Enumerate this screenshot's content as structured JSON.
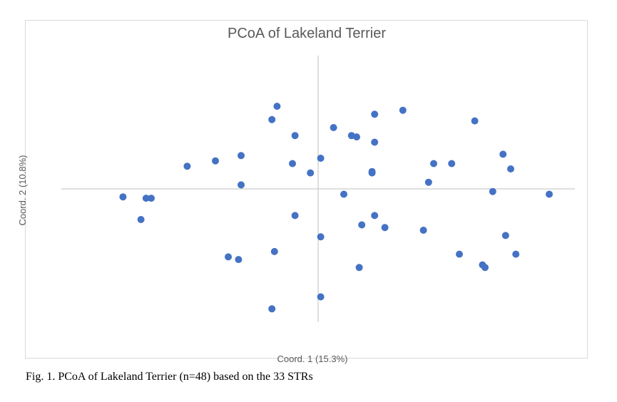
{
  "chart_data": {
    "type": "scatter",
    "title": "PCoA of Lakeland Terrier",
    "xlabel": "Coord. 1 (15.3%)",
    "ylabel": "Coord. 2 (10.8%)",
    "xlim": [
      -1.0,
      1.0
    ],
    "ylim": [
      -1.0,
      1.0
    ],
    "grid": false,
    "legend": "none",
    "marker_color": "#4472C4",
    "axis_color": "#bfbfbf",
    "points": [
      {
        "x": -0.76,
        "y": -0.06
      },
      {
        "x": -0.67,
        "y": -0.07
      },
      {
        "x": -0.65,
        "y": -0.07
      },
      {
        "x": -0.69,
        "y": -0.23
      },
      {
        "x": -0.51,
        "y": 0.17
      },
      {
        "x": -0.4,
        "y": 0.21
      },
      {
        "x": -0.3,
        "y": 0.25
      },
      {
        "x": -0.3,
        "y": 0.03
      },
      {
        "x": -0.31,
        "y": -0.53
      },
      {
        "x": -0.35,
        "y": -0.51
      },
      {
        "x": -0.18,
        "y": 0.52
      },
      {
        "x": -0.16,
        "y": 0.62
      },
      {
        "x": -0.17,
        "y": -0.47
      },
      {
        "x": -0.18,
        "y": -0.9
      },
      {
        "x": -0.09,
        "y": 0.4
      },
      {
        "x": -0.09,
        "y": -0.2
      },
      {
        "x": -0.1,
        "y": 0.19
      },
      {
        "x": -0.03,
        "y": 0.12
      },
      {
        "x": 0.01,
        "y": 0.23
      },
      {
        "x": 0.01,
        "y": -0.36
      },
      {
        "x": 0.01,
        "y": -0.81
      },
      {
        "x": 0.06,
        "y": 0.46
      },
      {
        "x": 0.1,
        "y": -0.04
      },
      {
        "x": 0.13,
        "y": 0.4
      },
      {
        "x": 0.15,
        "y": 0.39
      },
      {
        "x": 0.17,
        "y": -0.27
      },
      {
        "x": 0.16,
        "y": -0.59
      },
      {
        "x": 0.21,
        "y": 0.13
      },
      {
        "x": 0.21,
        "y": 0.12
      },
      {
        "x": 0.22,
        "y": 0.56
      },
      {
        "x": 0.22,
        "y": 0.35
      },
      {
        "x": 0.22,
        "y": -0.2
      },
      {
        "x": 0.26,
        "y": -0.29
      },
      {
        "x": 0.33,
        "y": 0.59
      },
      {
        "x": 0.41,
        "y": -0.31
      },
      {
        "x": 0.43,
        "y": 0.05
      },
      {
        "x": 0.45,
        "y": 0.19
      },
      {
        "x": 0.52,
        "y": 0.19
      },
      {
        "x": 0.55,
        "y": -0.49
      },
      {
        "x": 0.61,
        "y": 0.51
      },
      {
        "x": 0.64,
        "y": -0.57
      },
      {
        "x": 0.65,
        "y": -0.59
      },
      {
        "x": 0.68,
        "y": -0.02
      },
      {
        "x": 0.72,
        "y": 0.26
      },
      {
        "x": 0.73,
        "y": -0.35
      },
      {
        "x": 0.75,
        "y": 0.15
      },
      {
        "x": 0.77,
        "y": -0.49
      },
      {
        "x": 0.9,
        "y": -0.04
      }
    ]
  },
  "caption": "Fig. 1. PCoA of Lakeland Terrier (n=48) based on the 33 STRs"
}
